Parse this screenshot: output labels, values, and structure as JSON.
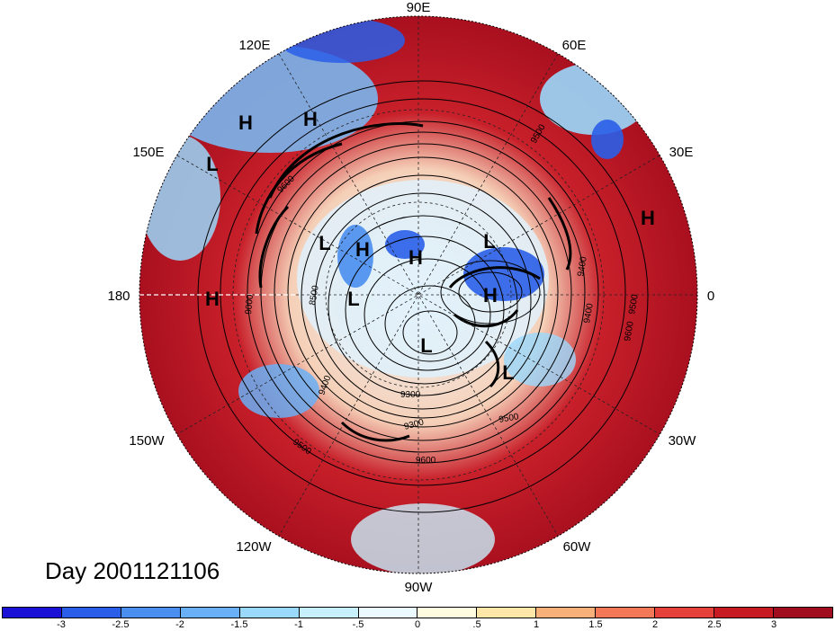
{
  "title": "Day 2001121106",
  "longitude_labels": [
    {
      "id": "90e",
      "text": "90E"
    },
    {
      "id": "60e",
      "text": "60E"
    },
    {
      "id": "30e",
      "text": "30E"
    },
    {
      "id": "0",
      "text": "0"
    },
    {
      "id": "30w",
      "text": "30W"
    },
    {
      "id": "60w",
      "text": "60W"
    },
    {
      "id": "90w",
      "text": "90W"
    },
    {
      "id": "120w",
      "text": "120W"
    },
    {
      "id": "150w",
      "text": "150W"
    },
    {
      "id": "180",
      "text": "180"
    },
    {
      "id": "150e",
      "text": "150E"
    },
    {
      "id": "120e",
      "text": "120E"
    }
  ],
  "pressure_markers": [
    "H",
    "H",
    "L",
    "H",
    "L",
    "H",
    "H",
    "L",
    "H",
    "L",
    "H",
    "L",
    "L",
    "L"
  ],
  "contour_labels": [
    "9500",
    "9600",
    "8500",
    "9000",
    "9400",
    "9400",
    "9500",
    "9600",
    "9400",
    "9300",
    "9500",
    "9500",
    "9600",
    "9300"
  ],
  "colorbar": {
    "colors": [
      "#1a10d6",
      "#2a5ee8",
      "#4a8ef0",
      "#6ab0f6",
      "#9ad8fc",
      "#c8f0fc",
      "#eafafe",
      "#fffce0",
      "#fde6a8",
      "#f8b07a",
      "#f27858",
      "#e6403a",
      "#c81a22",
      "#a00d1e"
    ],
    "labels": [
      "-3",
      "-2.5",
      "-2",
      "-1.5",
      "-1",
      "-.5",
      "0",
      ".5",
      "1",
      "1.5",
      "2",
      "2.5",
      "3"
    ]
  }
}
